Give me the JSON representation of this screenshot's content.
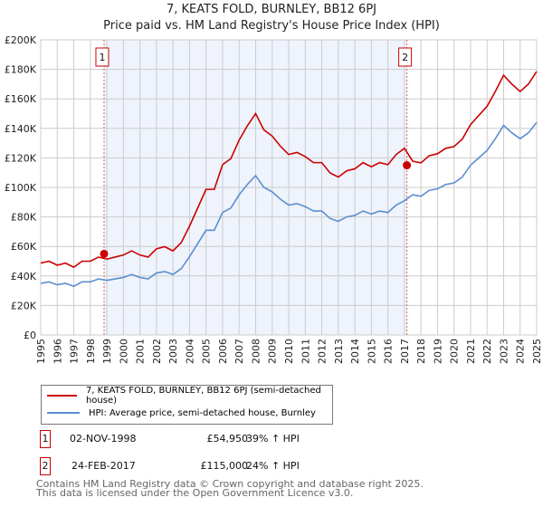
{
  "chart_data": {
    "type": "line",
    "title": "7, KEATS FOLD, BURNLEY, BB12 6PJ",
    "subtitle": "Price paid vs. HM Land Registry's House Price Index (HPI)",
    "xlim": [
      1995,
      2025
    ],
    "ylim": [
      0,
      200000
    ],
    "x_ticks": [
      "1995",
      "1996",
      "1997",
      "1998",
      "1999",
      "2000",
      "2001",
      "2002",
      "2003",
      "2004",
      "2005",
      "2006",
      "2007",
      "2008",
      "2009",
      "2010",
      "2011",
      "2012",
      "2013",
      "2014",
      "2015",
      "2016",
      "2017",
      "2018",
      "2019",
      "2020",
      "2021",
      "2022",
      "2023",
      "2024",
      "2025"
    ],
    "y_ticks": [
      "£0",
      "£20K",
      "£40K",
      "£60K",
      "£80K",
      "£100K",
      "£120K",
      "£140K",
      "£160K",
      "£180K",
      "£200K"
    ],
    "grid": true,
    "x": [
      1995,
      1995.5,
      1996,
      1996.5,
      1997,
      1997.5,
      1998,
      1998.5,
      1999,
      1999.5,
      2000,
      2000.5,
      2001,
      2001.5,
      2002,
      2002.5,
      2003,
      2003.5,
      2004,
      2004.5,
      2005,
      2005.5,
      2006,
      2006.5,
      2007,
      2007.5,
      2008,
      2008.5,
      2009,
      2009.5,
      2010,
      2010.5,
      2011,
      2011.5,
      2012,
      2012.5,
      2013,
      2013.5,
      2014,
      2014.5,
      2015,
      2015.5,
      2016,
      2016.5,
      2017,
      2017.5,
      2018,
      2018.5,
      2019,
      2019.5,
      2020,
      2020.5,
      2021,
      2021.5,
      2022,
      2022.5,
      2023,
      2023.5,
      2024,
      2024.5,
      2025
    ],
    "series": [
      {
        "name": "7, KEATS FOLD, BURNLEY, BB12 6PJ (semi-detached house)",
        "color": "#cc0000",
        "values": [
          48700,
          50000,
          47300,
          48700,
          45900,
          50000,
          50000,
          52800,
          51400,
          52800,
          54200,
          57000,
          54200,
          52800,
          58400,
          59800,
          57000,
          62600,
          73700,
          86200,
          98700,
          98700,
          115400,
          119500,
          132000,
          141800,
          150000,
          139000,
          134800,
          127900,
          122300,
          123700,
          120900,
          116800,
          116800,
          109800,
          107000,
          111200,
          112600,
          116800,
          114000,
          116800,
          115400,
          122300,
          126500,
          117800,
          116600,
          121500,
          122800,
          126500,
          127700,
          132700,
          142600,
          148800,
          155000,
          165000,
          176000,
          170000,
          165000,
          170000,
          178600
        ]
      },
      {
        "name": "HPI: Average price, semi-detached house, Burnley",
        "color": "#5b8fd0",
        "values": [
          35000,
          36000,
          34000,
          35000,
          33000,
          36000,
          36000,
          38000,
          37000,
          38000,
          39000,
          41000,
          39000,
          38000,
          42000,
          43000,
          41000,
          45000,
          53000,
          62000,
          71000,
          71000,
          83000,
          86000,
          95000,
          102000,
          108000,
          100000,
          97000,
          92000,
          88000,
          89000,
          87000,
          84000,
          84000,
          79000,
          77000,
          80000,
          81000,
          84000,
          82000,
          84000,
          83000,
          88000,
          91000,
          95000,
          94000,
          98000,
          99000,
          102000,
          103000,
          107000,
          115000,
          120000,
          125000,
          133000,
          142000,
          137000,
          133000,
          137000,
          144000
        ]
      }
    ],
    "sales": [
      {
        "id": "1",
        "date": "02-NOV-1998",
        "x": 1998.83,
        "price": "£54,950",
        "value": 54950,
        "hpi": "39% ↑ HPI"
      },
      {
        "id": "2",
        "date": "24-FEB-2017",
        "x": 2017.15,
        "price": "£115,000",
        "value": 115000,
        "hpi": "24% ↑ HPI"
      }
    ],
    "shade_color": "#eef3fc"
  },
  "footer": {
    "line1": "Contains HM Land Registry data © Crown copyright and database right 2025.",
    "line2": "This data is licensed under the Open Government Licence v3.0."
  }
}
